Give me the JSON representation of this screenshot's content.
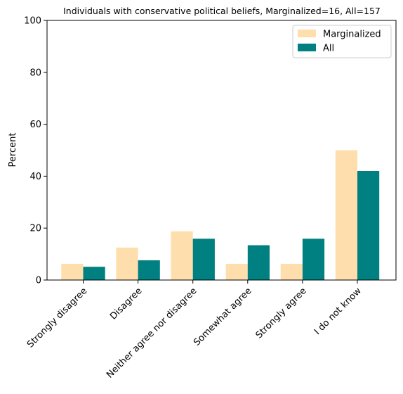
{
  "chart_data": {
    "type": "bar",
    "title": "Individuals with conservative political beliefs, Marginalized=16, All=157",
    "xlabel": "",
    "ylabel": "Percent",
    "ylim": [
      0,
      100
    ],
    "yticks": [
      0,
      20,
      40,
      60,
      80,
      100
    ],
    "categories": [
      "Strongly disagree",
      "Disagree",
      "Neither agree nor disagree",
      "Somewhat agree",
      "Strongly agree",
      "I do not know"
    ],
    "series": [
      {
        "name": "Marginalized",
        "color": "#ffdead",
        "values": [
          6.25,
          12.5,
          18.75,
          6.25,
          6.25,
          50.0
        ]
      },
      {
        "name": "All",
        "color": "#008080",
        "values": [
          5.1,
          7.6,
          15.9,
          13.4,
          15.9,
          42.0
        ]
      }
    ],
    "legend": "top-right",
    "grid": false
  }
}
